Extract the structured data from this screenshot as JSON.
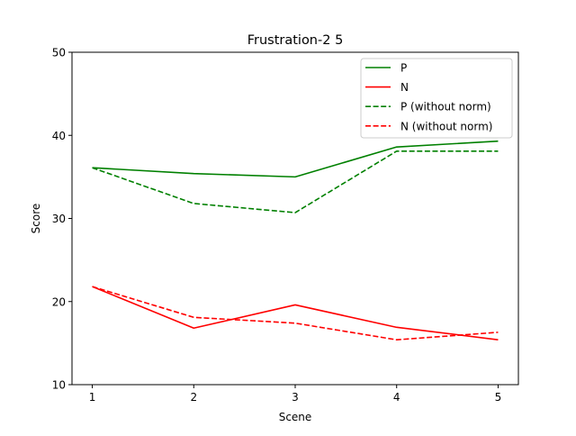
{
  "chart_data": {
    "type": "line",
    "title": "Frustration-2 5",
    "xlabel": "Scene",
    "ylabel": "Score",
    "xlim": [
      0.8,
      5.2
    ],
    "ylim": [
      10,
      50
    ],
    "x": [
      1,
      2,
      3,
      4,
      5
    ],
    "x_ticks": [
      1,
      2,
      3,
      4,
      5
    ],
    "y_ticks": [
      10,
      20,
      30,
      40,
      50
    ],
    "grid": false,
    "legend_position": "top-right",
    "series": [
      {
        "name": "P",
        "color": "#008000",
        "linestyle": "solid",
        "values": [
          36.1,
          35.4,
          35.0,
          38.6,
          39.3
        ]
      },
      {
        "name": "N",
        "color": "#ff0000",
        "linestyle": "solid",
        "values": [
          21.8,
          16.8,
          19.6,
          16.9,
          15.4
        ]
      },
      {
        "name": "P (without norm)",
        "color": "#008000",
        "linestyle": "dashed",
        "values": [
          36.1,
          31.8,
          30.7,
          38.1,
          38.1
        ]
      },
      {
        "name": "N (without norm)",
        "color": "#ff0000",
        "linestyle": "dashed",
        "values": [
          21.8,
          18.1,
          17.4,
          15.4,
          16.3
        ]
      }
    ]
  }
}
